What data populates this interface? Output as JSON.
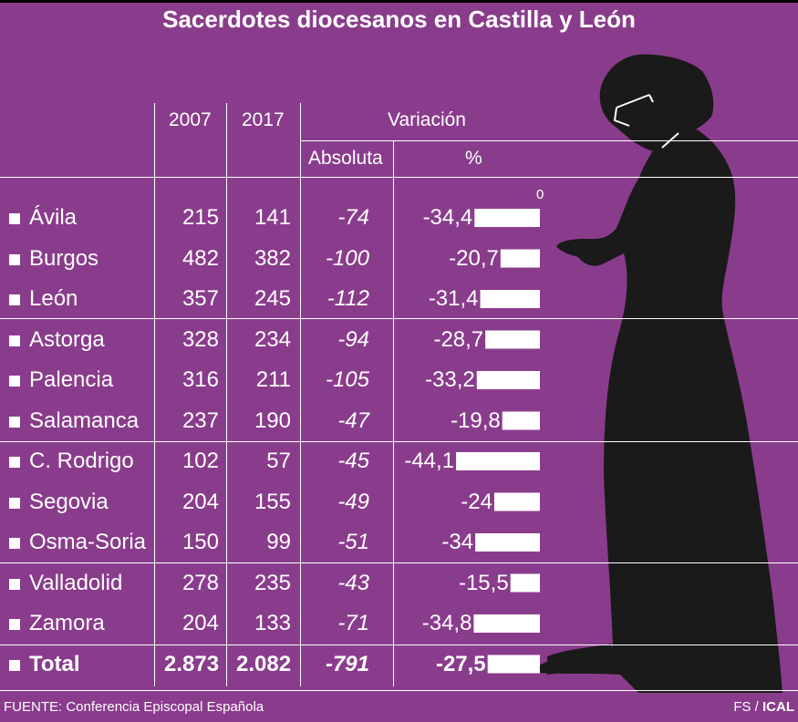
{
  "chart_data": {
    "type": "table",
    "title": "Sacerdotes diocesanos en Castilla y León",
    "columns": {
      "y2007": "2007",
      "y2017": "2017",
      "variation": "Variación",
      "absolute": "Absoluta",
      "percent": "%"
    },
    "bar_axis_zero": "0",
    "rows": [
      {
        "name": "Ávila",
        "y2007": "215",
        "y2017": "141",
        "abs": "-74",
        "pct": "-34,4",
        "pct_value": -34.4
      },
      {
        "name": "Burgos",
        "y2007": "482",
        "y2017": "382",
        "abs": "-100",
        "pct": "-20,7",
        "pct_value": -20.7
      },
      {
        "name": "León",
        "y2007": "357",
        "y2017": "245",
        "abs": "-112",
        "pct": "-31,4",
        "pct_value": -31.4
      },
      {
        "name": "Astorga",
        "y2007": "328",
        "y2017": "234",
        "abs": "-94",
        "pct": "-28,7",
        "pct_value": -28.7
      },
      {
        "name": "Palencia",
        "y2007": "316",
        "y2017": "211",
        "abs": "-105",
        "pct": "-33,2",
        "pct_value": -33.2
      },
      {
        "name": "Salamanca",
        "y2007": "237",
        "y2017": "190",
        "abs": "-47",
        "pct": "-19,8",
        "pct_value": -19.8
      },
      {
        "name": "C. Rodrigo",
        "y2007": "102",
        "y2017": "57",
        "abs": "-45",
        "pct": "-44,1",
        "pct_value": -44.1
      },
      {
        "name": "Segovia",
        "y2007": "204",
        "y2017": "155",
        "abs": "-49",
        "pct": "-24",
        "pct_value": -24
      },
      {
        "name": "Osma-Soria",
        "y2007": "150",
        "y2017": "99",
        "abs": "-51",
        "pct": "-34",
        "pct_value": -34
      },
      {
        "name": "Valladolid",
        "y2007": "278",
        "y2017": "235",
        "abs": "-43",
        "pct": "-15,5",
        "pct_value": -15.5
      },
      {
        "name": "Zamora",
        "y2007": "204",
        "y2017": "133",
        "abs": "-71",
        "pct": "-34,8",
        "pct_value": -34.8
      }
    ],
    "total": {
      "name": "Total",
      "y2007": "2.873",
      "y2017": "2.082",
      "abs": "-791",
      "pct": "-27,5",
      "pct_value": -27.5
    }
  },
  "footer": {
    "source": "FUENTE: Conferencia Episcopal Española",
    "credit_author": "FS",
    "credit_sep": " / ",
    "credit_agency": "ICAL"
  },
  "colors": {
    "background": "#8a3c8c",
    "silhouette": "#1a1a1a",
    "text": "#ffffff"
  },
  "icons": {
    "figure": "priest-silhouette-icon",
    "bullet": "square-bullet-icon"
  }
}
